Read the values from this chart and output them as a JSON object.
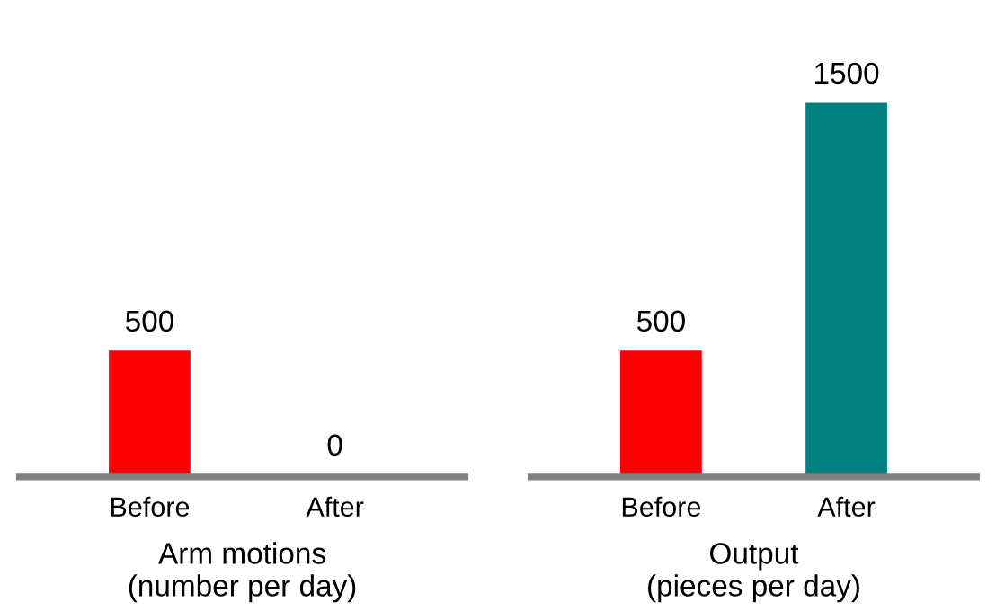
{
  "chart_data": [
    {
      "type": "bar",
      "categories": [
        "Before",
        "After"
      ],
      "values": [
        500,
        0
      ],
      "colors": [
        "#ff0000",
        "#006666"
      ],
      "xlabel": "Arm motions\n(number per day)",
      "data_labels": true,
      "tick_labels": "x"
    },
    {
      "type": "bar",
      "categories": [
        "Before",
        "After"
      ],
      "values": [
        500,
        1500
      ],
      "colors": [
        "#ff0000",
        "#008080"
      ],
      "xlabel": "Output\n(pieces per day)",
      "data_labels": true,
      "tick_labels": "x"
    }
  ]
}
